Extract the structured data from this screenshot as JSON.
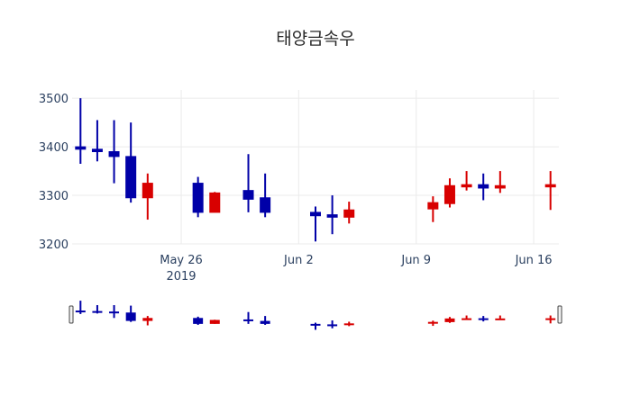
{
  "chart_data": {
    "type": "candlestick",
    "title": "태양금속우",
    "xlabel": "",
    "ylabel": "",
    "ylim": [
      3200,
      3517
    ],
    "y_ticks": [
      3200,
      3300,
      3400,
      3500
    ],
    "x_ticks": [
      {
        "date": "2019-05-26",
        "label": "May 26",
        "sublabel": "2019"
      },
      {
        "date": "2019-06-02",
        "label": "Jun 2",
        "sublabel": ""
      },
      {
        "date": "2019-06-09",
        "label": "Jun 9",
        "sublabel": ""
      },
      {
        "date": "2019-06-16",
        "label": "Jun 16",
        "sublabel": ""
      }
    ],
    "xlim": [
      "2019-05-19T12:00",
      "2019-06-17T12:00"
    ],
    "grid": true,
    "increasing_color": "#d80000",
    "decreasing_color": "#0000a8",
    "rangeslider": true,
    "series": [
      {
        "date": "2019-05-20",
        "open": 3400,
        "high": 3500,
        "low": 3365,
        "close": 3395
      },
      {
        "date": "2019-05-21",
        "open": 3395,
        "high": 3455,
        "low": 3370,
        "close": 3390
      },
      {
        "date": "2019-05-22",
        "open": 3390,
        "high": 3455,
        "low": 3325,
        "close": 3380
      },
      {
        "date": "2019-05-23",
        "open": 3380,
        "high": 3450,
        "low": 3285,
        "close": 3295
      },
      {
        "date": "2019-05-24",
        "open": 3295,
        "high": 3345,
        "low": 3250,
        "close": 3325
      },
      {
        "date": "2019-05-27",
        "open": 3325,
        "high": 3338,
        "low": 3255,
        "close": 3265
      },
      {
        "date": "2019-05-28",
        "open": 3265,
        "high": 3307,
        "low": 3265,
        "close": 3305
      },
      {
        "date": "2019-05-30",
        "open": 3310,
        "high": 3385,
        "low": 3265,
        "close": 3292
      },
      {
        "date": "2019-05-31",
        "open": 3295,
        "high": 3345,
        "low": 3255,
        "close": 3265
      },
      {
        "date": "2019-06-03",
        "open": 3265,
        "high": 3277,
        "low": 3205,
        "close": 3258
      },
      {
        "date": "2019-06-04",
        "open": 3260,
        "high": 3300,
        "low": 3220,
        "close": 3255
      },
      {
        "date": "2019-06-05",
        "open": 3255,
        "high": 3287,
        "low": 3242,
        "close": 3270
      },
      {
        "date": "2019-06-10",
        "open": 3272,
        "high": 3298,
        "low": 3245,
        "close": 3285
      },
      {
        "date": "2019-06-11",
        "open": 3283,
        "high": 3335,
        "low": 3275,
        "close": 3320
      },
      {
        "date": "2019-06-12",
        "open": 3318,
        "high": 3350,
        "low": 3310,
        "close": 3322
      },
      {
        "date": "2019-06-13",
        "open": 3322,
        "high": 3345,
        "low": 3290,
        "close": 3315
      },
      {
        "date": "2019-06-14",
        "open": 3315,
        "high": 3350,
        "low": 3305,
        "close": 3320
      },
      {
        "date": "2019-06-17",
        "open": 3320,
        "high": 3350,
        "low": 3270,
        "close": 3322
      }
    ]
  }
}
